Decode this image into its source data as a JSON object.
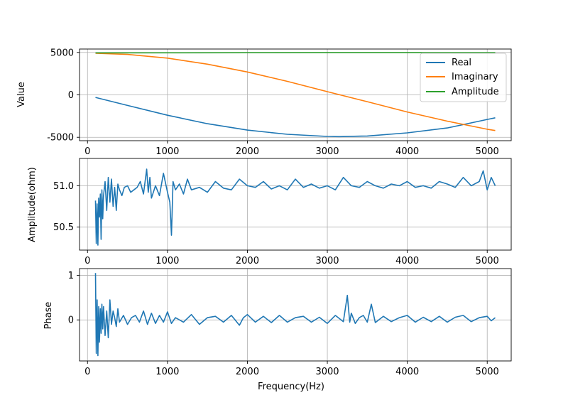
{
  "chart_data": [
    {
      "type": "line",
      "id": "top",
      "ylabel": "Value",
      "xlabel": "",
      "xlim": [
        -100,
        5300
      ],
      "ylim": [
        -5400,
        5400
      ],
      "xticks": [
        0,
        1000,
        2000,
        3000,
        4000,
        5000
      ],
      "yticks": [
        -5000,
        0,
        5000
      ],
      "grid": true,
      "legend": "top-right",
      "series": [
        {
          "name": "Real",
          "color": "#1f77b4",
          "x": [
            100,
            500,
            1000,
            1500,
            2000,
            2500,
            3000,
            3150,
            3500,
            4000,
            4500,
            5000,
            5100
          ],
          "y": [
            -300,
            -1250,
            -2400,
            -3400,
            -4150,
            -4650,
            -4900,
            -4920,
            -4850,
            -4480,
            -3900,
            -2900,
            -2700
          ]
        },
        {
          "name": "Imaginary",
          "color": "#ff7f0e",
          "x": [
            100,
            500,
            1000,
            1500,
            2000,
            2500,
            3000,
            3500,
            4000,
            4500,
            5000,
            5100
          ],
          "y": [
            4900,
            4760,
            4330,
            3620,
            2700,
            1590,
            380,
            -800,
            -2020,
            -3100,
            -4050,
            -4200
          ]
        },
        {
          "name": "Amplitude",
          "color": "#2ca02c",
          "x": [
            100,
            1000,
            2000,
            3000,
            4000,
            5000,
            5100
          ],
          "y": [
            4950,
            4960,
            4965,
            4970,
            4975,
            4980,
            4980
          ]
        }
      ]
    },
    {
      "type": "line",
      "id": "middle",
      "ylabel": "Amplitude(ohm)",
      "xlabel": "",
      "xlim": [
        -100,
        5300
      ],
      "ylim": [
        50.22,
        51.33
      ],
      "xticks": [
        0,
        1000,
        2000,
        3000,
        4000,
        5000
      ],
      "yticks": [
        50.5,
        51.0
      ],
      "yticklabels": [
        "50.5",
        "51.0"
      ],
      "grid": true,
      "series": [
        {
          "name": "Amplitude",
          "color": "#1f77b4",
          "x": [
            100,
            110,
            120,
            130,
            140,
            150,
            160,
            170,
            180,
            190,
            200,
            220,
            240,
            260,
            280,
            300,
            320,
            340,
            360,
            380,
            400,
            430,
            460,
            500,
            540,
            580,
            620,
            660,
            700,
            740,
            760,
            780,
            800,
            850,
            900,
            950,
            1000,
            1030,
            1050,
            1070,
            1100,
            1150,
            1200,
            1250,
            1300,
            1400,
            1500,
            1600,
            1700,
            1800,
            1900,
            2000,
            2100,
            2200,
            2300,
            2400,
            2500,
            2600,
            2700,
            2800,
            2900,
            3000,
            3100,
            3200,
            3300,
            3400,
            3500,
            3600,
            3700,
            3800,
            3900,
            4000,
            4100,
            4200,
            4300,
            4400,
            4500,
            4600,
            4700,
            4800,
            4900,
            4950,
            5000,
            5050,
            5100
          ],
          "y": [
            50.82,
            50.3,
            50.78,
            50.28,
            50.85,
            50.62,
            50.9,
            50.35,
            50.95,
            50.6,
            50.88,
            51.05,
            50.7,
            51.1,
            50.8,
            51.08,
            50.75,
            50.98,
            50.7,
            51.02,
            50.95,
            50.88,
            50.98,
            51.0,
            50.92,
            50.95,
            50.98,
            51.05,
            50.9,
            51.2,
            50.92,
            51.1,
            50.85,
            51.0,
            50.88,
            51.15,
            50.92,
            50.8,
            50.4,
            51.05,
            50.95,
            51.02,
            50.9,
            51.08,
            50.95,
            50.98,
            50.92,
            51.05,
            50.97,
            50.95,
            51.08,
            51.0,
            50.98,
            51.05,
            50.96,
            51.0,
            50.95,
            51.08,
            50.98,
            51.02,
            50.97,
            51.0,
            50.95,
            51.1,
            51.0,
            50.98,
            51.05,
            51.0,
            50.97,
            51.02,
            51.0,
            51.05,
            50.98,
            51.0,
            50.97,
            51.05,
            51.02,
            50.98,
            51.1,
            51.0,
            51.05,
            51.18,
            50.95,
            51.1,
            51.0
          ]
        }
      ]
    },
    {
      "type": "line",
      "id": "bottom",
      "ylabel": "Phase",
      "xlabel": "Frequency(Hz)",
      "xlim": [
        -100,
        5300
      ],
      "ylim": [
        -0.92,
        1.15
      ],
      "xticks": [
        0,
        1000,
        2000,
        3000,
        4000,
        5000
      ],
      "yticks": [
        0,
        1
      ],
      "grid": true,
      "series": [
        {
          "name": "Phase",
          "color": "#1f77b4",
          "x": [
            100,
            110,
            120,
            130,
            140,
            150,
            160,
            170,
            180,
            190,
            200,
            220,
            240,
            260,
            280,
            300,
            320,
            340,
            360,
            380,
            400,
            450,
            500,
            550,
            600,
            650,
            700,
            750,
            800,
            850,
            900,
            950,
            1000,
            1050,
            1100,
            1200,
            1300,
            1400,
            1500,
            1600,
            1700,
            1800,
            1900,
            1950,
            2000,
            2100,
            2200,
            2300,
            2400,
            2500,
            2600,
            2700,
            2800,
            2900,
            3000,
            3100,
            3200,
            3250,
            3280,
            3300,
            3350,
            3400,
            3450,
            3500,
            3550,
            3600,
            3700,
            3800,
            3900,
            4000,
            4100,
            4200,
            4300,
            4400,
            4500,
            4600,
            4700,
            4800,
            4900,
            5000,
            5050,
            5100
          ],
          "y": [
            1.05,
            -0.75,
            0.45,
            -0.8,
            0.3,
            -0.5,
            0.25,
            -0.3,
            0.35,
            -0.2,
            0.3,
            -0.35,
            0.2,
            -0.4,
            0.45,
            -0.1,
            0.2,
            0.05,
            -0.15,
            0.25,
            -0.05,
            0.1,
            -0.1,
            0.05,
            0.1,
            -0.05,
            0.2,
            -0.1,
            0.15,
            -0.08,
            0.1,
            -0.05,
            0.18,
            -0.08,
            0.05,
            -0.05,
            0.12,
            -0.1,
            0.05,
            0.08,
            -0.05,
            0.1,
            -0.12,
            0.05,
            0.12,
            -0.05,
            0.08,
            -0.06,
            0.1,
            -0.05,
            0.05,
            0.08,
            -0.05,
            0.06,
            -0.08,
            0.1,
            -0.04,
            0.55,
            -0.05,
            0.15,
            -0.08,
            0.05,
            0.1,
            -0.05,
            0.35,
            -0.06,
            0.08,
            -0.04,
            0.05,
            0.1,
            -0.05,
            0.06,
            -0.04,
            0.08,
            -0.05,
            0.06,
            0.1,
            -0.04,
            0.05,
            0.08,
            -0.02,
            0.05
          ]
        }
      ]
    }
  ]
}
